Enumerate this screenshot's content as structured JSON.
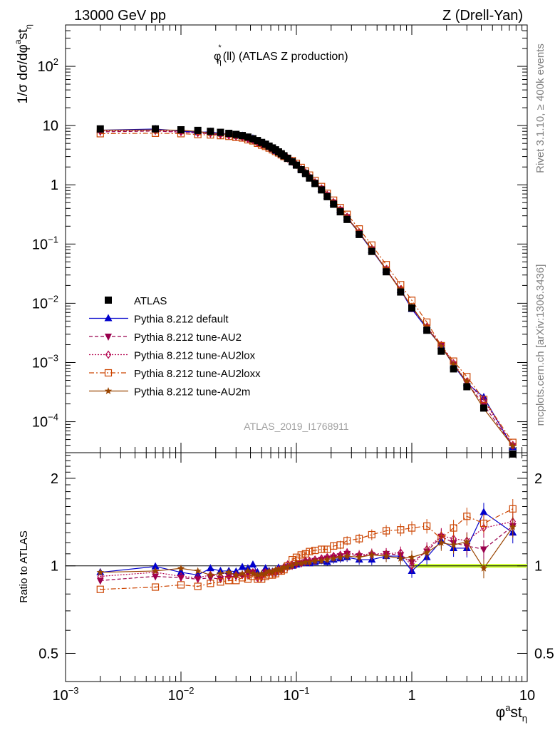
{
  "header": {
    "left": "13000 GeV pp",
    "right": "Z (Drell-Yan)"
  },
  "side_notes": {
    "top": "Rivet 3.1.10, ≥ 400k events",
    "bottom": "mcplots.cern.ch [arXiv:1306.3436]"
  },
  "analysis_id": "ATLAS_2019_I1768911",
  "colors": {
    "data": "#000000",
    "default": "#0000cc",
    "au2": "#99004d",
    "au2lox": "#b3004d",
    "au2loxx": "#cc4400",
    "au2m": "#994400",
    "band": "#ccff33"
  },
  "chart_data": [
    {
      "type": "scatter",
      "title_parts": {
        "base": "φ",
        "sup": "*",
        "sub": "η",
        "rest": "(ll) (ATLAS Z production)"
      },
      "ylabel_text": "1/σ dσ/dφ",
      "ylabel_sup": "a",
      "ylabel_mid": "st",
      "ylabel_sub": "η",
      "x_scale": "log",
      "y_scale": "log",
      "xlim": [
        0.001,
        10
      ],
      "ylim": [
        3e-05,
        500
      ],
      "y_ticks": [
        {
          "value": 100,
          "mantissa": "10",
          "exponent": "2"
        },
        {
          "value": 10,
          "mantissa": "10",
          "exponent": ""
        },
        {
          "value": 1,
          "mantissa": "1",
          "exponent": ""
        },
        {
          "value": 0.1,
          "mantissa": "10",
          "exponent": "−1"
        },
        {
          "value": 0.01,
          "mantissa": "10",
          "exponent": "−2"
        },
        {
          "value": 0.001,
          "mantissa": "10",
          "exponent": "−3"
        },
        {
          "value": 0.0001,
          "mantissa": "10",
          "exponent": "−4"
        }
      ],
      "legend_position": "bottom-left",
      "x": [
        0.002,
        0.006,
        0.01,
        0.014,
        0.018,
        0.022,
        0.026,
        0.03,
        0.034,
        0.038,
        0.042,
        0.046,
        0.05,
        0.054,
        0.058,
        0.062,
        0.066,
        0.07,
        0.074,
        0.078,
        0.084,
        0.092,
        0.1,
        0.11,
        0.12,
        0.13,
        0.145,
        0.165,
        0.185,
        0.21,
        0.24,
        0.275,
        0.35,
        0.45,
        0.6,
        0.8,
        1.0,
        1.35,
        1.8,
        2.3,
        3.0,
        4.2,
        7.5
      ],
      "series": [
        {
          "key": "data",
          "name": "ATLAS",
          "marker": "square",
          "line": "none",
          "values": [
            8.8,
            8.8,
            8.5,
            8.3,
            8.0,
            7.7,
            7.4,
            7.1,
            6.8,
            6.4,
            6.0,
            5.6,
            5.2,
            4.85,
            4.5,
            4.2,
            3.9,
            3.6,
            3.35,
            3.1,
            2.8,
            2.45,
            2.15,
            1.8,
            1.55,
            1.3,
            1.05,
            0.82,
            0.63,
            0.47,
            0.35,
            0.26,
            0.145,
            0.075,
            0.034,
            0.0155,
            0.0083,
            0.0035,
            0.00155,
            0.00078,
            0.00039,
            0.00017,
            2.85e-05
          ]
        },
        {
          "key": "default",
          "name": "Pythia 8.212 default",
          "marker": "triangle-up",
          "line": "solid",
          "ratio": [
            0.95,
            0.995,
            0.95,
            0.93,
            0.98,
            0.96,
            0.96,
            0.955,
            0.99,
            0.98,
            1.01,
            0.95,
            0.935,
            0.98,
            0.96,
            0.955,
            0.95,
            0.985,
            0.975,
            0.99,
            0.995,
            1.0,
            1.01,
            1.02,
            1.03,
            1.02,
            1.03,
            1.04,
            1.03,
            1.05,
            1.06,
            1.07,
            1.05,
            1.05,
            1.08,
            1.08,
            0.96,
            1.07,
            1.22,
            1.15,
            1.15,
            1.53,
            1.3
          ]
        },
        {
          "key": "au2",
          "name": "Pythia 8.212 tune-AU2",
          "marker": "triangle-down",
          "line": "dashed",
          "ratio": [
            0.89,
            0.92,
            0.91,
            0.9,
            0.91,
            0.9,
            0.92,
            0.92,
            0.93,
            0.94,
            0.95,
            0.92,
            0.91,
            0.95,
            0.94,
            0.94,
            0.94,
            0.96,
            0.96,
            0.98,
            0.99,
            1.0,
            1.01,
            1.02,
            1.03,
            1.03,
            1.04,
            1.05,
            1.06,
            1.07,
            1.08,
            1.1,
            1.08,
            1.09,
            1.1,
            1.09,
            1.03,
            1.12,
            1.26,
            1.2,
            1.17,
            1.14,
            1.37
          ]
        },
        {
          "key": "au2lox",
          "name": "Pythia 8.212 tune-AU2lox",
          "marker": "diamond",
          "line": "dotted",
          "ratio": [
            0.92,
            0.95,
            0.92,
            0.91,
            0.93,
            0.92,
            0.92,
            0.93,
            0.93,
            0.93,
            0.95,
            0.91,
            0.92,
            0.95,
            0.95,
            0.95,
            0.96,
            0.97,
            0.97,
            0.99,
            1.01,
            1.01,
            1.02,
            1.02,
            1.04,
            1.04,
            1.05,
            1.06,
            1.07,
            1.08,
            1.09,
            1.11,
            1.09,
            1.1,
            1.1,
            1.11,
            1.0,
            1.14,
            1.27,
            1.24,
            1.22,
            1.35,
            1.42
          ]
        },
        {
          "key": "au2loxx",
          "name": "Pythia 8.212 tune-AU2loxx",
          "marker": "square-open",
          "line": "dashdot",
          "ratio": [
            0.83,
            0.845,
            0.86,
            0.85,
            0.87,
            0.88,
            0.89,
            0.89,
            0.91,
            0.9,
            0.92,
            0.9,
            0.9,
            0.92,
            0.93,
            0.93,
            0.94,
            0.96,
            0.96,
            0.97,
            1.0,
            1.05,
            1.07,
            1.09,
            1.1,
            1.12,
            1.13,
            1.14,
            1.14,
            1.17,
            1.18,
            1.22,
            1.24,
            1.28,
            1.32,
            1.33,
            1.35,
            1.37,
            1.24,
            1.35,
            1.48,
            1.4,
            1.57
          ]
        },
        {
          "key": "au2m",
          "name": "Pythia 8.212 tune-AU2m",
          "marker": "star",
          "line": "solid",
          "ratio": [
            0.95,
            0.96,
            0.98,
            0.96,
            0.93,
            0.94,
            0.95,
            0.93,
            0.94,
            0.96,
            0.94,
            0.93,
            0.94,
            0.94,
            0.96,
            0.95,
            0.97,
            0.97,
            0.97,
            0.99,
            0.99,
            1.0,
            1.02,
            1.02,
            1.03,
            1.03,
            1.04,
            1.04,
            1.05,
            1.06,
            1.07,
            1.08,
            1.07,
            1.09,
            1.08,
            1.06,
            1.07,
            1.11,
            1.2,
            1.18,
            1.21,
            0.98,
            1.36
          ]
        }
      ]
    },
    {
      "type": "scatter",
      "ylabel": "Ratio to ATLAS",
      "xlabel_base": "φ",
      "xlabel_sup": "a",
      "xlabel_mid": "st",
      "xlabel_sub": "η",
      "x_scale": "log",
      "y_scale": "log",
      "xlim": [
        0.001,
        10
      ],
      "ylim": [
        0.4,
        2.45
      ],
      "y_ticks": [
        {
          "value": 2,
          "label": "2"
        },
        {
          "value": 1,
          "label": "1"
        },
        {
          "value": 0.5,
          "label": "0.5"
        }
      ],
      "x_ticks": [
        {
          "value": 0.001,
          "mantissa": "10",
          "exponent": "−3"
        },
        {
          "value": 0.01,
          "mantissa": "10",
          "exponent": "−2"
        },
        {
          "value": 0.1,
          "mantissa": "10",
          "exponent": "−1"
        },
        {
          "value": 1,
          "mantissa": "1",
          "exponent": ""
        },
        {
          "value": 10,
          "mantissa": "10",
          "exponent": ""
        }
      ],
      "reference_line": 1,
      "uncertainty_band": [
        0.985,
        1.015
      ]
    }
  ]
}
